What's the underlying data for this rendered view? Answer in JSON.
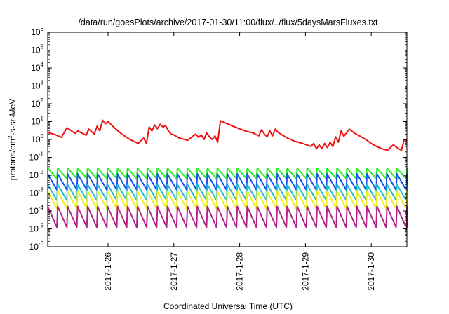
{
  "chart_data": {
    "type": "line",
    "title": "/data/run/goesPlots/archive/2017-01-30/11:00/flux/../flux/5daysMarsFluxes.txt",
    "xlabel": "Coordinated Universal Time (UTC)",
    "ylabel": {
      "base": "protons/cm",
      "sup": "2",
      "rest": "-s-sr-MeV"
    },
    "y_scale": "log",
    "ylim": [
      1e-06,
      1000000.0
    ],
    "y_ticks": [
      {
        "base": "10",
        "exp": "-6"
      },
      {
        "base": "10",
        "exp": "-5"
      },
      {
        "base": "10",
        "exp": "-4"
      },
      {
        "base": "10",
        "exp": "-3"
      },
      {
        "base": "10",
        "exp": "-2"
      },
      {
        "base": "10",
        "exp": "-1"
      },
      {
        "base": "10",
        "exp": "0"
      },
      {
        "base": "10",
        "exp": "1"
      },
      {
        "base": "10",
        "exp": "2"
      },
      {
        "base": "10",
        "exp": "3"
      },
      {
        "base": "10",
        "exp": "4"
      },
      {
        "base": "10",
        "exp": "5"
      },
      {
        "base": "10",
        "exp": "6"
      }
    ],
    "xlim": [
      "2017-01-25 02:00",
      "2017-01-30 13:00"
    ],
    "x_ticks": [
      "2017-1-26",
      "2017-1-27",
      "2017-1-28",
      "2017-1-29",
      "2017-1-30"
    ],
    "grid": false,
    "legend": "none",
    "series": [
      {
        "color": "#ee1111",
        "x": [
          "2017-01-25 02:00",
          "2017-01-25 05:00",
          "2017-01-25 07:00",
          "2017-01-25 09:00",
          "2017-01-25 12:00",
          "2017-01-25 13:00",
          "2017-01-25 16:00",
          "2017-01-25 17:00",
          "2017-01-25 19:00",
          "2017-01-25 20:00",
          "2017-01-25 21:00",
          "2017-01-25 22:00",
          "2017-01-25 23:00",
          "2017-01-26 00:00",
          "2017-01-26 02:00",
          "2017-01-26 05:00",
          "2017-01-26 08:00",
          "2017-01-26 11:00",
          "2017-01-26 13:00",
          "2017-01-26 14:00",
          "2017-01-26 15:00",
          "2017-01-26 16:00",
          "2017-01-26 17:00",
          "2017-01-26 18:00",
          "2017-01-26 19:00",
          "2017-01-26 20:00",
          "2017-01-26 21:00",
          "2017-01-26 22:00",
          "2017-01-26 23:00",
          "2017-01-27 00:00",
          "2017-01-27 02:00",
          "2017-01-27 05:00",
          "2017-01-27 08:00",
          "2017-01-27 09:00",
          "2017-01-27 10:00",
          "2017-01-27 11:00",
          "2017-01-27 12:00",
          "2017-01-27 13:00",
          "2017-01-27 14:00",
          "2017-01-27 15:00",
          "2017-01-27 16:00",
          "2017-01-27 17:00",
          "2017-01-27 20:00",
          "2017-01-27 23:00",
          "2017-01-28 02:00",
          "2017-01-28 05:00",
          "2017-01-28 07:00",
          "2017-01-28 08:00",
          "2017-01-28 09:00",
          "2017-01-28 10:00",
          "2017-01-28 11:00",
          "2017-01-28 12:00",
          "2017-01-28 13:00",
          "2017-01-28 14:00",
          "2017-01-28 17:00",
          "2017-01-28 20:00",
          "2017-01-28 23:00",
          "2017-01-29 02:00",
          "2017-01-29 03:00",
          "2017-01-29 04:00",
          "2017-01-29 05:00",
          "2017-01-29 06:00",
          "2017-01-29 07:00",
          "2017-01-29 08:00",
          "2017-01-29 09:00",
          "2017-01-29 10:00",
          "2017-01-29 11:00",
          "2017-01-29 12:00",
          "2017-01-29 13:00",
          "2017-01-29 14:00",
          "2017-01-29 16:00",
          "2017-01-29 18:00",
          "2017-01-29 20:00",
          "2017-01-29 22:00",
          "2017-01-30 00:00",
          "2017-01-30 02:00",
          "2017-01-30 04:00",
          "2017-01-30 06:00",
          "2017-01-30 08:00",
          "2017-01-30 10:00",
          "2017-01-30 11:00",
          "2017-01-30 12:00",
          "2017-01-30 13:00"
        ],
        "values": [
          2.5,
          1.8,
          1.3,
          4.5,
          2.2,
          3.0,
          1.7,
          3.8,
          2.0,
          5.5,
          3.0,
          12,
          7.5,
          10,
          5.0,
          2.0,
          1.0,
          0.6,
          1.2,
          0.6,
          5.0,
          3.0,
          6.5,
          4.0,
          7.0,
          5.0,
          6.0,
          3.0,
          2.0,
          1.8,
          1.2,
          0.9,
          2.0,
          1.3,
          1.8,
          1.0,
          2.3,
          1.4,
          1.0,
          1.6,
          0.7,
          11,
          7.0,
          4.5,
          3.0,
          2.3,
          1.6,
          3.5,
          2.0,
          1.4,
          3.0,
          1.6,
          3.8,
          2.5,
          1.3,
          0.8,
          0.6,
          0.4,
          0.6,
          0.3,
          0.5,
          0.3,
          0.6,
          0.35,
          0.7,
          0.4,
          1.4,
          0.7,
          3.0,
          1.5,
          3.8,
          2.2,
          1.5,
          1.0,
          0.6,
          0.4,
          0.3,
          0.25,
          0.5,
          0.3,
          0.25,
          1.0,
          0.9
        ]
      },
      {
        "color": "#22ee22",
        "peak": 0.025,
        "trough": 0.0065
      },
      {
        "color": "#1155ee",
        "peak": 0.012,
        "trough": 0.0015
      },
      {
        "color": "#22bbcc",
        "peak": 0.003,
        "trough": 0.0004
      },
      {
        "color": "#eeee22",
        "peak": 0.0013,
        "trough": 0.00013
      },
      {
        "color": "#b22288",
        "peak": 0.00018,
        "trough": 1.2e-05
      }
    ],
    "sawtooth_cycles": 36
  }
}
